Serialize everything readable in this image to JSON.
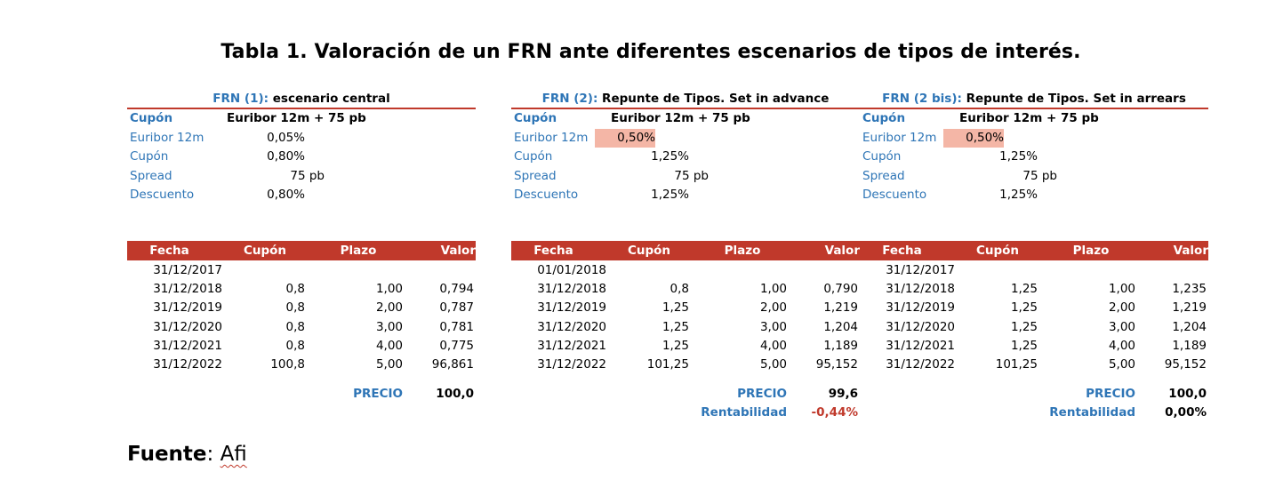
{
  "title": "Tabla 1. Valoración de un FRN ante diferentes escenarios de tipos de interés.",
  "panels": [
    {
      "title_prefix": "FRN (1):",
      "title_suffix": " escenario central",
      "cupon_label": "Cupón",
      "cupon_formula": "Euribor 12m + 75 pb",
      "euribor_label": "Euribor 12m",
      "euribor_value": "0,05%",
      "euribor_highlight": false,
      "cupon2_label": "Cupón",
      "cupon2_value": "0,80%",
      "spread_label": "Spread",
      "spread_value": "75  pb",
      "descuento_label": "Descuento",
      "descuento_value": "0,80%",
      "headers": [
        "Fecha",
        "Cupón",
        "Plazo",
        "Valor actual"
      ],
      "rows": [
        [
          "31/12/2017",
          "",
          "",
          ""
        ],
        [
          "31/12/2018",
          "0,8",
          "1,00",
          "0,794"
        ],
        [
          "31/12/2019",
          "0,8",
          "2,00",
          "0,787"
        ],
        [
          "31/12/2020",
          "0,8",
          "3,00",
          "0,781"
        ],
        [
          "31/12/2021",
          "0,8",
          "4,00",
          "0,775"
        ],
        [
          "31/12/2022",
          "100,8",
          "5,00",
          "96,861"
        ]
      ],
      "precio_label": "PRECIO",
      "precio_value": "100,0",
      "rent_label": "",
      "rent_value": ""
    },
    {
      "title_prefix": "FRN (2):",
      "title_suffix": " Repunte de Tipos. Set in advance",
      "cupon_label": "Cupón",
      "cupon_formula": "Euribor 12m + 75 pb",
      "euribor_label": "Euribor 12m",
      "euribor_value": "0,50%",
      "euribor_highlight": true,
      "cupon2_label": "Cupón",
      "cupon2_value": "1,25%",
      "spread_label": "Spread",
      "spread_value": "75  pb",
      "descuento_label": "Descuento",
      "descuento_value": "1,25%",
      "headers": [
        "Fecha",
        "Cupón",
        "Plazo",
        "Valor actual"
      ],
      "rows": [
        [
          "01/01/2018",
          "",
          "",
          ""
        ],
        [
          "31/12/2018",
          "0,8",
          "1,00",
          "0,790"
        ],
        [
          "31/12/2019",
          "1,25",
          "2,00",
          "1,219"
        ],
        [
          "31/12/2020",
          "1,25",
          "3,00",
          "1,204"
        ],
        [
          "31/12/2021",
          "1,25",
          "4,00",
          "1,189"
        ],
        [
          "31/12/2022",
          "101,25",
          "5,00",
          "95,152"
        ]
      ],
      "precio_label": "PRECIO",
      "precio_value": "99,6",
      "rent_label": "Rentabilidad",
      "rent_value": "-0,44%",
      "rent_negative": true
    },
    {
      "title_prefix": "FRN (2 bis):",
      "title_suffix": " Repunte de Tipos. Set in arrears",
      "cupon_label": "Cupón",
      "cupon_formula": "Euribor 12m + 75 pb",
      "euribor_label": "Euribor 12m",
      "euribor_value": "0,50%",
      "euribor_highlight": true,
      "cupon2_label": "Cupón",
      "cupon2_value": "1,25%",
      "spread_label": "Spread",
      "spread_value": "75  pb",
      "descuento_label": "Descuento",
      "descuento_value": "1,25%",
      "headers": [
        "Fecha",
        "Cupón",
        "Plazo",
        "Valor actual"
      ],
      "rows": [
        [
          "31/12/2017",
          "",
          "",
          ""
        ],
        [
          "31/12/2018",
          "1,25",
          "1,00",
          "1,235"
        ],
        [
          "31/12/2019",
          "1,25",
          "2,00",
          "1,219"
        ],
        [
          "31/12/2020",
          "1,25",
          "3,00",
          "1,204"
        ],
        [
          "31/12/2021",
          "1,25",
          "4,00",
          "1,189"
        ],
        [
          "31/12/2022",
          "101,25",
          "5,00",
          "95,152"
        ]
      ],
      "precio_label": "PRECIO",
      "precio_value": "100,0",
      "rent_label": "Rentabilidad",
      "rent_value": "0,00%",
      "rent_negative": false
    }
  ],
  "footer": {
    "label": "Fuente",
    "colon": ":",
    "source": "Afi"
  },
  "colors": {
    "accent": "#c0392b",
    "label_blue": "#2e75b6",
    "highlight": "#f4b6a6"
  }
}
